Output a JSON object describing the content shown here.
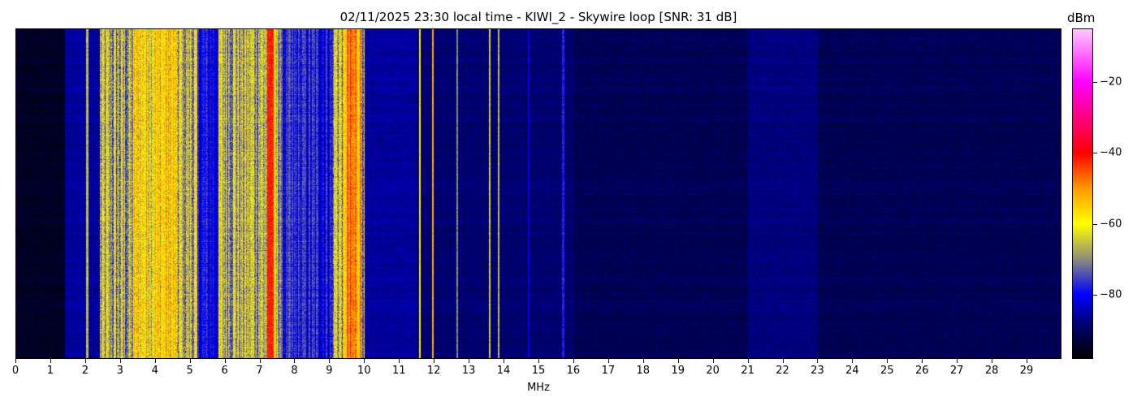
{
  "chart_data": {
    "type": "heatmap",
    "title": "02/11/2025 23:30 local time - KIWI_2 - Skywire loop [SNR: 31 dB]",
    "xlabel": "MHz",
    "xlim": [
      0,
      30
    ],
    "xticks": [
      0,
      1,
      2,
      3,
      4,
      5,
      6,
      7,
      8,
      9,
      10,
      11,
      12,
      13,
      14,
      15,
      16,
      17,
      18,
      19,
      20,
      21,
      22,
      23,
      24,
      25,
      26,
      27,
      28,
      29
    ],
    "colorbar": {
      "label": "dBm",
      "range": [
        -98,
        -5
      ],
      "ticks": [
        -20,
        -40,
        -60,
        -80
      ],
      "colormap": [
        [
          -98,
          "#000000"
        ],
        [
          -88,
          "#00007a"
        ],
        [
          -80,
          "#0000ff"
        ],
        [
          -70,
          "#8c8c7a"
        ],
        [
          -60,
          "#ffff00"
        ],
        [
          -50,
          "#ff9900"
        ],
        [
          -40,
          "#ff0000"
        ],
        [
          -20,
          "#ff00ff"
        ],
        [
          -5,
          "#ffc8ff"
        ]
      ]
    },
    "signal_bands_dBm": [
      {
        "from": 0,
        "to": 1.4,
        "level": -95,
        "var": 2
      },
      {
        "from": 1.4,
        "to": 2.4,
        "level": -86,
        "var": 4
      },
      {
        "from": 2.4,
        "to": 3.4,
        "level": -68,
        "var": 10
      },
      {
        "from": 3.4,
        "to": 4.6,
        "level": -58,
        "var": 9
      },
      {
        "from": 4.6,
        "to": 5.2,
        "level": -66,
        "var": 10
      },
      {
        "from": 5.2,
        "to": 5.8,
        "level": -80,
        "var": 5
      },
      {
        "from": 5.8,
        "to": 7.6,
        "level": -66,
        "var": 9
      },
      {
        "from": 7.2,
        "to": 7.4,
        "level": -42,
        "var": 3
      },
      {
        "from": 7.6,
        "to": 9.1,
        "level": -79,
        "var": 6
      },
      {
        "from": 9.1,
        "to": 10.0,
        "level": -64,
        "var": 10
      },
      {
        "from": 9.45,
        "to": 9.9,
        "level": -50,
        "var": 8
      },
      {
        "from": 10.0,
        "to": 11.5,
        "level": -86,
        "var": 3
      },
      {
        "from": 11.5,
        "to": 16,
        "level": -89,
        "var": 2
      },
      {
        "from": 16,
        "to": 30,
        "level": -91,
        "var": 2
      },
      {
        "from": 21,
        "to": 23,
        "level": -88,
        "var": 1
      }
    ],
    "signal_lines_dBm": [
      {
        "f": 2.05,
        "level": -66
      },
      {
        "f": 11.58,
        "level": -58
      },
      {
        "f": 11.97,
        "level": -52
      },
      {
        "f": 12.65,
        "level": -70
      },
      {
        "f": 13.6,
        "level": -64
      },
      {
        "f": 13.85,
        "level": -66
      },
      {
        "f": 14.7,
        "level": -82
      },
      {
        "f": 15.7,
        "level": -78
      }
    ]
  }
}
